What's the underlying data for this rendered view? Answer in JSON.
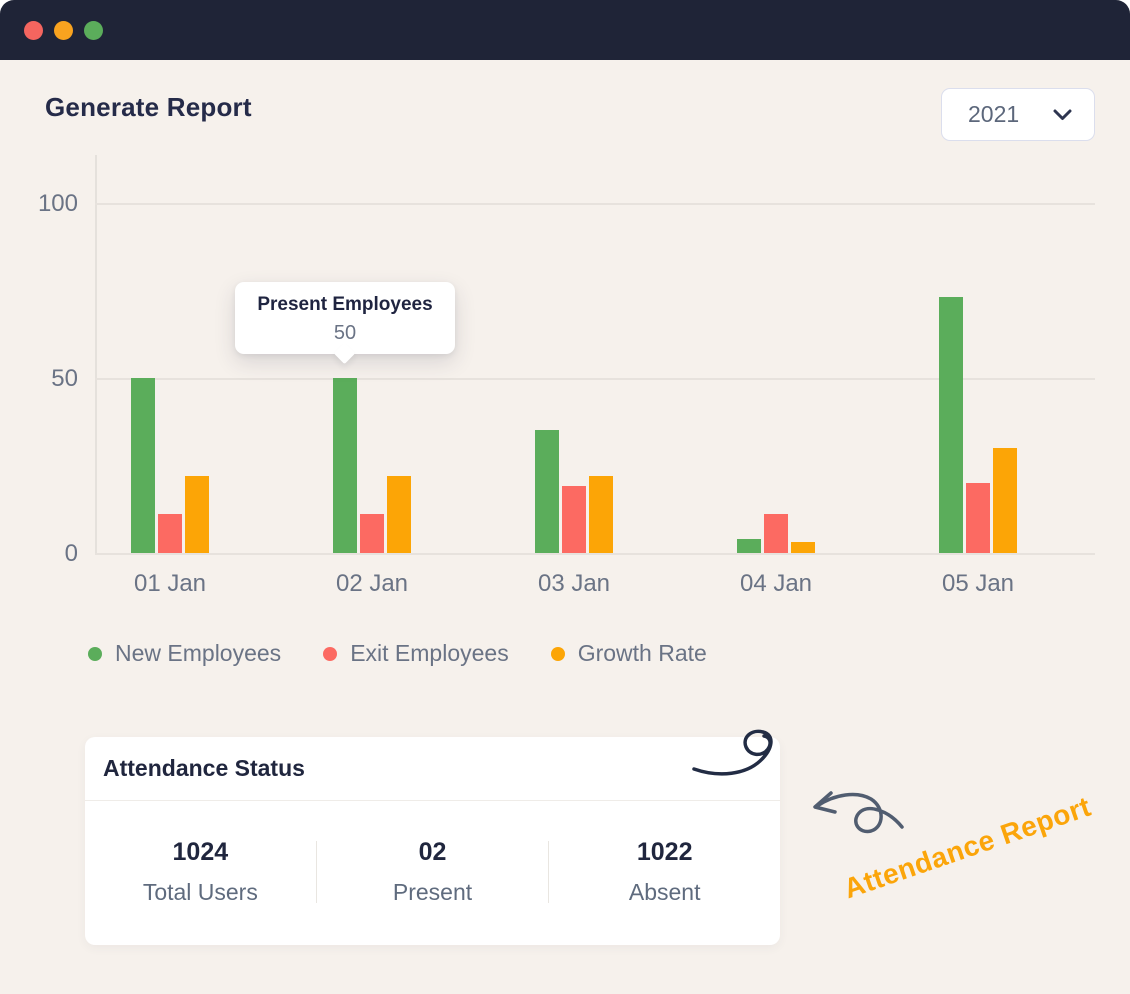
{
  "window": {
    "traffic_lights": {
      "red": "#F4655F",
      "yellow": "#F9A31F",
      "green": "#5BAD5B"
    },
    "titlebar_color": "#1F2437",
    "background_color": "#F6F1EC"
  },
  "header": {
    "title": "Generate Report",
    "year_dropdown": {
      "value": "2021"
    }
  },
  "chart_data": {
    "type": "bar",
    "title": "",
    "categories": [
      "01 Jan",
      "02 Jan",
      "03 Jan",
      "04 Jan",
      "05 Jan"
    ],
    "series": [
      {
        "name": "New Employees",
        "color": "#5BAD5B",
        "values": [
          50,
          50,
          35,
          4,
          73
        ]
      },
      {
        "name": "Exit Employees",
        "color": "#FC6A62",
        "values": [
          11,
          11,
          19,
          11,
          20
        ]
      },
      {
        "name": "Growth Rate",
        "color": "#FCA506",
        "values": [
          22,
          22,
          22,
          3,
          30
        ]
      }
    ],
    "ylim": [
      0,
      100
    ],
    "yticks": [
      0,
      50,
      100
    ],
    "grid": "horizontal",
    "legend_position": "bottom",
    "tooltip": {
      "title": "Present Employees",
      "value": "50",
      "category": "02 Jan",
      "series": "New Employees"
    }
  },
  "attendance": {
    "title": "Attendance Status",
    "stats": [
      {
        "value": "1024",
        "label": "Total Users"
      },
      {
        "value": "02",
        "label": "Present"
      },
      {
        "value": "1022",
        "label": "Absent"
      }
    ]
  },
  "annotation": {
    "text": "Attendance Report",
    "color": "#FBA50A"
  }
}
